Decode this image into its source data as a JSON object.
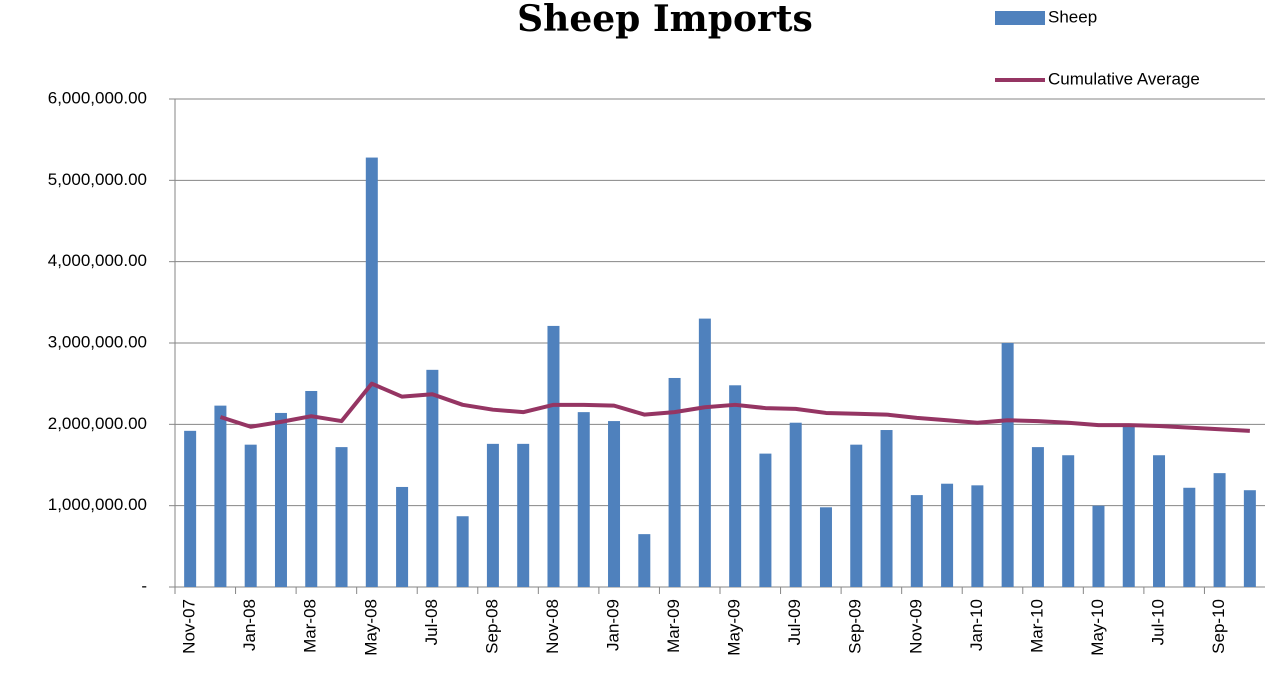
{
  "chart_data": {
    "type": "bar",
    "title": "Sheep Imports",
    "categories": [
      "Nov-07",
      null,
      "Jan-08",
      null,
      "Mar-08",
      null,
      "May-08",
      null,
      "Jul-08",
      null,
      "Sep-08",
      null,
      "Nov-08",
      null,
      "Jan-09",
      null,
      "Mar-09",
      null,
      "May-09",
      null,
      "Jul-09",
      null,
      "Sep-09",
      null,
      "Nov-09",
      null,
      "Jan-10",
      null,
      "Mar-10",
      null,
      "May-10",
      null,
      "Jul-10",
      null,
      "Sep-10",
      null
    ],
    "series": [
      {
        "name": "Sheep",
        "type": "bar",
        "color": "#4f81bd",
        "values": [
          1920000,
          2230000,
          1750000,
          2140000,
          2410000,
          1720000,
          5280000,
          1230000,
          2670000,
          870000,
          1760000,
          1760000,
          3210000,
          2150000,
          2040000,
          650000,
          2570000,
          3300000,
          2480000,
          1640000,
          2020000,
          980000,
          1750000,
          1930000,
          1130000,
          1270000,
          1250000,
          3000000,
          1720000,
          1620000,
          1000000,
          2000000,
          1620000,
          1220000,
          1400000,
          1190000
        ]
      },
      {
        "name": "Cumulative Average",
        "type": "line",
        "color": "#953563",
        "values": [
          null,
          2090000,
          1970000,
          2030000,
          2100000,
          2040000,
          2500000,
          2340000,
          2370000,
          2240000,
          2180000,
          2150000,
          2240000,
          2240000,
          2230000,
          2120000,
          2150000,
          2210000,
          2240000,
          2200000,
          2190000,
          2140000,
          2130000,
          2120000,
          2080000,
          2050000,
          2020000,
          2050000,
          2040000,
          2020000,
          1990000,
          1990000,
          1980000,
          1960000,
          1940000,
          1920000
        ]
      }
    ],
    "ylim": [
      0,
      6000000
    ],
    "yticks": [
      {
        "value": 0,
        "label": "-"
      },
      {
        "value": 1000000,
        "label": "1,000,000.00"
      },
      {
        "value": 2000000,
        "label": "2,000,000.00"
      },
      {
        "value": 3000000,
        "label": "3,000,000.00"
      },
      {
        "value": 4000000,
        "label": "4,000,000.00"
      },
      {
        "value": 5000000,
        "label": "5,000,000.00"
      },
      {
        "value": 6000000,
        "label": "6,000,000.00"
      }
    ],
    "grid": true,
    "legend": "top-right"
  }
}
